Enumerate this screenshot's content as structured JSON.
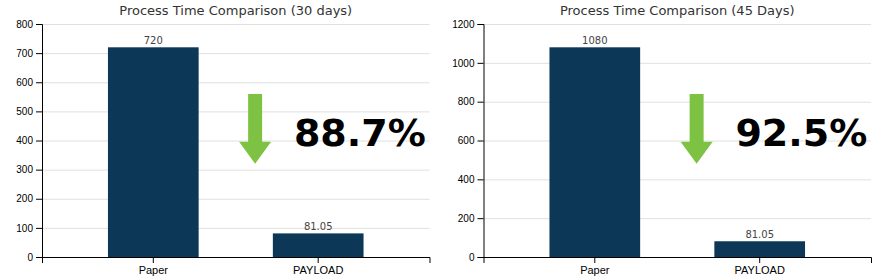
{
  "chart_data": [
    {
      "type": "bar",
      "title": "Process Time Comparison (30 days)",
      "categories": [
        "Paper",
        "PAYLOAD"
      ],
      "values": [
        720,
        81.05
      ],
      "color": "#0d3756",
      "ylim": [
        0,
        800
      ],
      "yticks": [
        0,
        100,
        200,
        300,
        400,
        500,
        600,
        700,
        800
      ],
      "grid": true,
      "data_labels": true,
      "annotations": [
        {
          "text": "88.7%",
          "color": "#7dc242"
        }
      ]
    },
    {
      "type": "bar",
      "title": "Process Time Comparison (45 Days)",
      "categories": [
        "Paper",
        "PAYLOAD"
      ],
      "values": [
        1080,
        81.05
      ],
      "color": "#0d3756",
      "ylim": [
        0,
        1200
      ],
      "yticks": [
        0,
        200,
        400,
        600,
        800,
        1000,
        1200
      ],
      "grid": true,
      "data_labels": true,
      "annotations": [
        {
          "text": "92.5%",
          "color": "#7dc242"
        }
      ]
    }
  ]
}
